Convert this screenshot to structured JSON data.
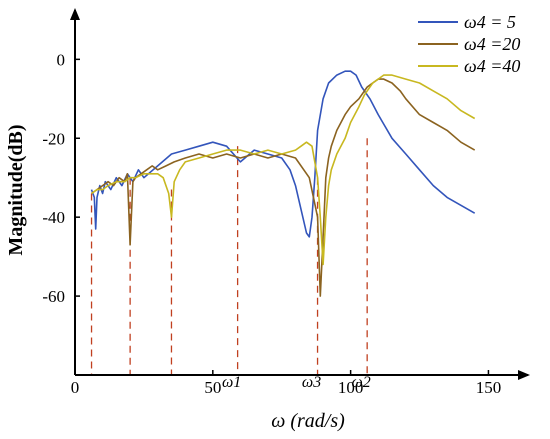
{
  "chart_data": {
    "type": "line",
    "title": "",
    "xlabel": "ω (rad/s)",
    "ylabel": "Magnitude(dB)",
    "xlim": [
      0,
      160
    ],
    "ylim": [
      -80,
      12
    ],
    "xticks": [
      0,
      50,
      100,
      150
    ],
    "yticks": [
      0,
      -20,
      -40,
      -60
    ],
    "xtick_labels": [
      "0",
      "50",
      "100",
      "150"
    ],
    "ytick_labels": [
      "0",
      "-20",
      "-40",
      "-60"
    ],
    "grid": false,
    "legend": "top-right",
    "series": [
      {
        "name": "ω4 = 5",
        "color": "#3355bb",
        "x": [
          6,
          7,
          7.5,
          8,
          9,
          10,
          11,
          13,
          15,
          17,
          19,
          21,
          23,
          25,
          30,
          35,
          40,
          45,
          50,
          55,
          60,
          65,
          70,
          75,
          78,
          80,
          82,
          84,
          85,
          86,
          87,
          88,
          90,
          92,
          95,
          98,
          100,
          102,
          104,
          107,
          110,
          115,
          120,
          125,
          130,
          135,
          140,
          145
        ],
        "y": [
          -33,
          -35,
          -43,
          -35,
          -32,
          -34,
          -31,
          -33,
          -30,
          -32,
          -29,
          -31,
          -28,
          -30,
          -27,
          -24,
          -23,
          -22,
          -21,
          -22,
          -26,
          -23,
          -24,
          -25,
          -28,
          -32,
          -38,
          -44,
          -45,
          -40,
          -30,
          -18,
          -10,
          -6,
          -4,
          -3,
          -3,
          -4,
          -7,
          -10,
          -14,
          -20,
          -24,
          -28,
          -32,
          -35,
          -37,
          -39
        ]
      },
      {
        "name": "ω4 =20",
        "color": "#8b6320",
        "x": [
          6,
          8,
          10,
          12,
          14,
          16,
          18,
          19,
          20,
          21,
          22,
          24,
          26,
          28,
          30,
          33,
          36,
          40,
          45,
          50,
          55,
          60,
          65,
          70,
          75,
          80,
          85,
          88,
          89,
          90,
          91,
          92,
          93,
          95,
          98,
          100,
          103,
          106,
          108,
          110,
          112,
          115,
          118,
          120,
          125,
          130,
          135,
          140,
          145
        ],
        "y": [
          -34,
          -33,
          -32,
          -31,
          -32,
          -30,
          -31,
          -29,
          -47,
          -31,
          -30,
          -29,
          -28,
          -27,
          -28,
          -27,
          -26,
          -25,
          -24,
          -25,
          -24,
          -25,
          -24,
          -25,
          -24,
          -25,
          -30,
          -40,
          -60,
          -45,
          -30,
          -25,
          -22,
          -18,
          -14,
          -12,
          -10,
          -7,
          -6,
          -5,
          -5,
          -6,
          -8,
          -10,
          -14,
          -16,
          -18,
          -21,
          -23
        ]
      },
      {
        "name": "ω4 =40",
        "color": "#c8b820",
        "x": [
          6,
          8,
          10,
          12,
          15,
          18,
          20,
          22,
          25,
          28,
          30,
          32,
          34,
          35,
          36,
          38,
          40,
          45,
          50,
          55,
          60,
          65,
          70,
          75,
          80,
          82,
          84,
          86,
          88,
          89,
          90,
          91,
          92,
          93,
          95,
          98,
          100,
          103,
          105,
          108,
          110,
          112,
          115,
          120,
          125,
          130,
          135,
          140,
          145
        ],
        "y": [
          -34,
          -33,
          -33,
          -32,
          -31,
          -31,
          -30,
          -30,
          -29,
          -29,
          -29,
          -30,
          -34,
          -40,
          -31,
          -28,
          -26,
          -25,
          -24,
          -23,
          -23,
          -24,
          -23,
          -24,
          -23,
          -22,
          -21,
          -22,
          -30,
          -40,
          -52,
          -40,
          -32,
          -28,
          -24,
          -20,
          -16,
          -12,
          -9,
          -6,
          -5,
          -4,
          -4,
          -5,
          -6,
          -8,
          -10,
          -13,
          -15
        ]
      }
    ],
    "reference_lines": {
      "color": "#c04020",
      "x": [
        6,
        20,
        35,
        59,
        88,
        106
      ],
      "top_y": [
        -34,
        -30,
        -33,
        -22,
        -30,
        -20
      ]
    },
    "annotations": [
      {
        "text": "ω1",
        "x": 59
      },
      {
        "text": "ω3",
        "x": 88
      },
      {
        "text": "ω2",
        "x": 106
      }
    ]
  }
}
